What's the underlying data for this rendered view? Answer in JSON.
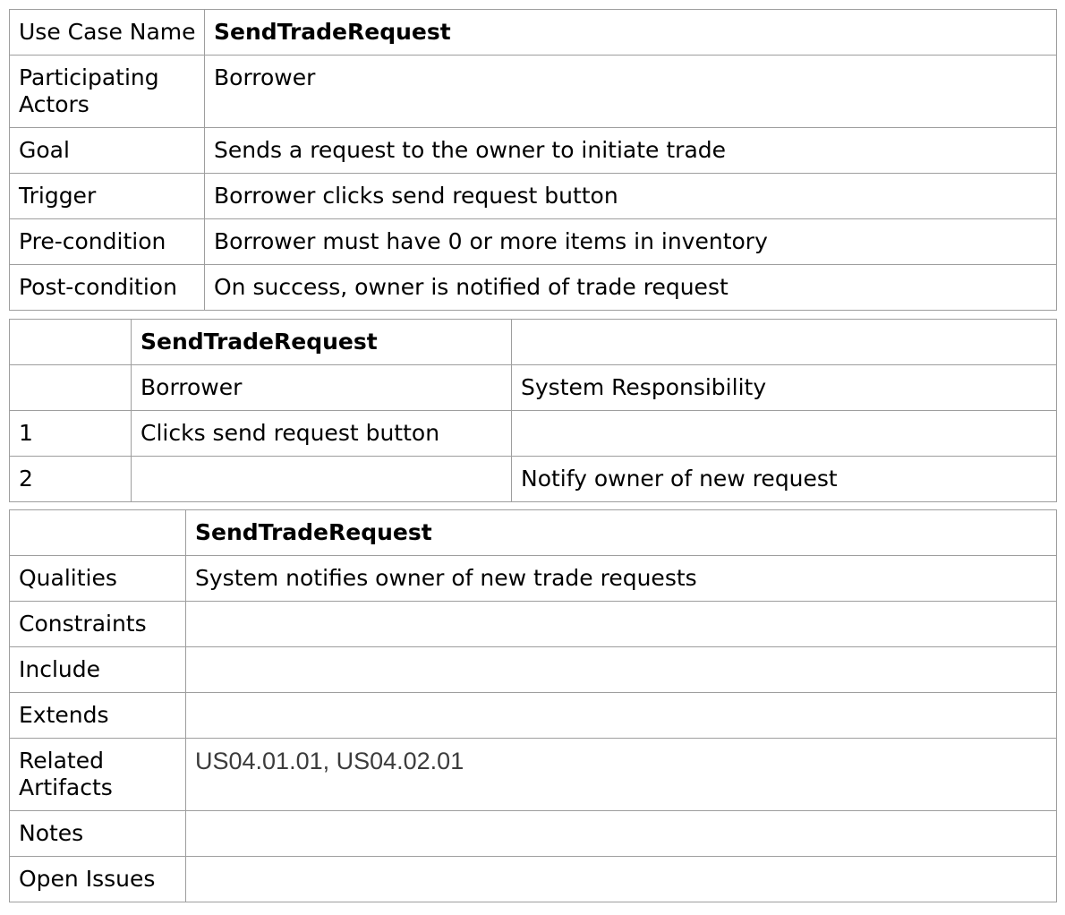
{
  "use_case": {
    "rows": [
      {
        "label": "Use Case Name",
        "value": "SendTradeRequest"
      },
      {
        "label": "Participating Actors",
        "value": "Borrower"
      },
      {
        "label": "Goal",
        "value": "Sends a request to the owner to initiate trade"
      },
      {
        "label": "Trigger",
        "value": "Borrower clicks send request button"
      },
      {
        "label": "Pre-condition",
        "value": "Borrower must have 0 or more items in inventory"
      },
      {
        "label": "Post-condition",
        "value": "On success, owner is notified of trade request"
      }
    ]
  },
  "flow": {
    "title": "SendTradeRequest",
    "actor_header": "Borrower",
    "system_header": "System Responsibility",
    "steps": [
      {
        "num": "1",
        "actor": "Clicks send request button",
        "system": ""
      },
      {
        "num": "2",
        "actor": "",
        "system": "Notify owner of new request"
      }
    ]
  },
  "extra": {
    "title": "SendTradeRequest",
    "rows": [
      {
        "label": "Qualities",
        "value": "System notifies owner of new trade requests"
      },
      {
        "label": "Constraints",
        "value": ""
      },
      {
        "label": "Include",
        "value": ""
      },
      {
        "label": "Extends",
        "value": ""
      },
      {
        "label": "Related Artifacts",
        "value": "US04.01.01, US04.02.01"
      },
      {
        "label": "Notes",
        "value": ""
      },
      {
        "label": "Open Issues",
        "value": ""
      }
    ]
  }
}
